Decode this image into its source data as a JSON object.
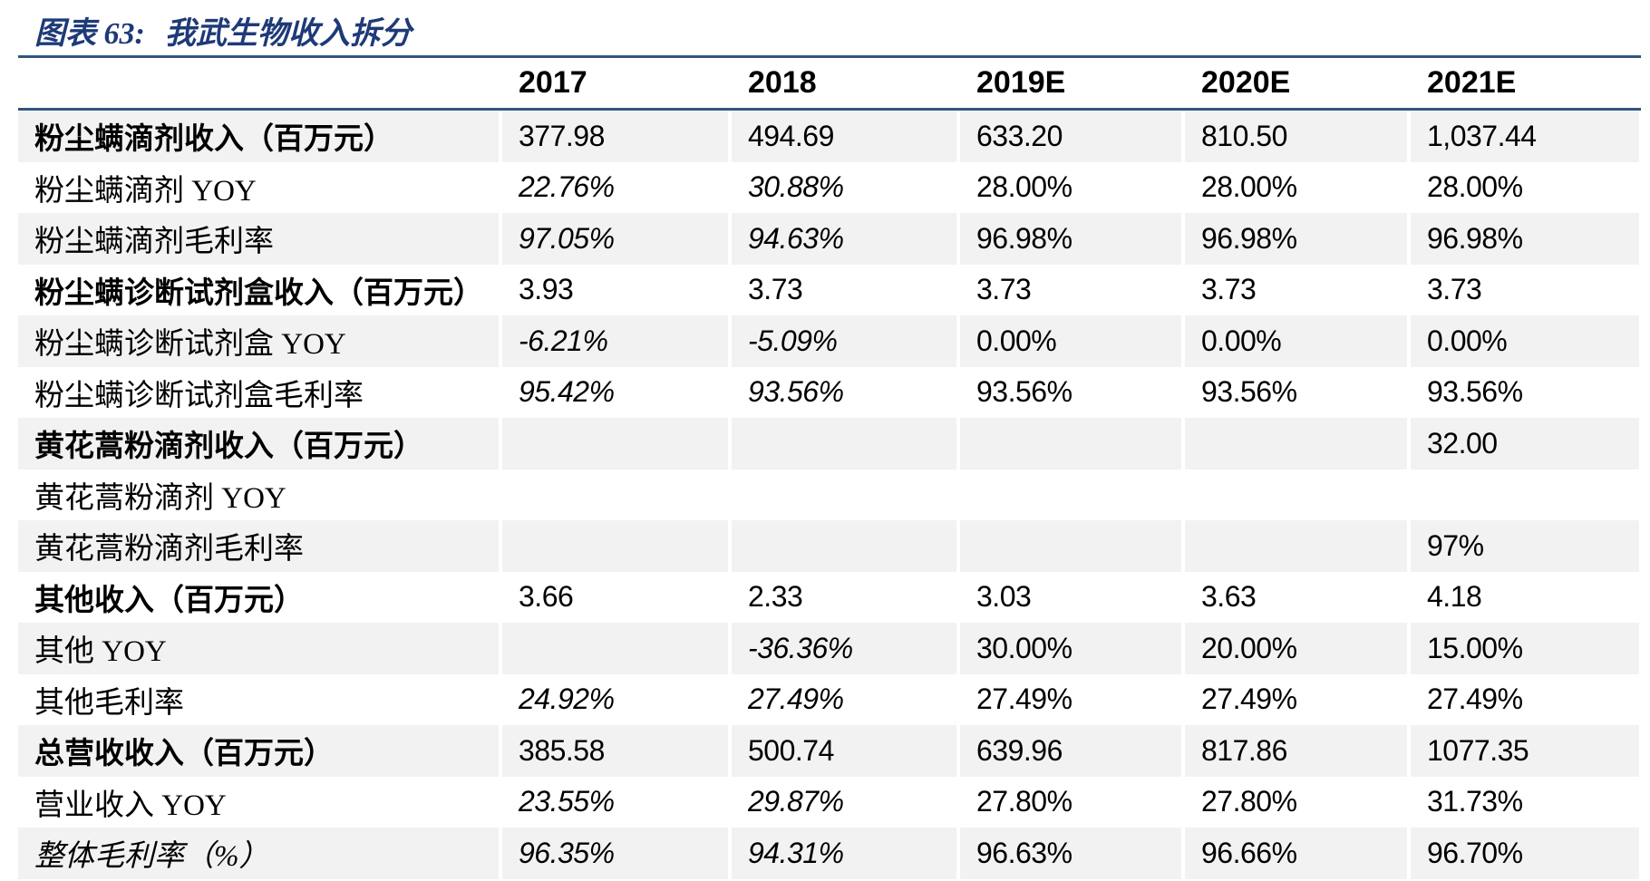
{
  "title": {
    "prefix": "图表 63:",
    "text": "我武生物收入拆分"
  },
  "colors": {
    "title_navy": "#1E3A78",
    "rule_blue": "#31567E",
    "row_stripe": "#F2F2F2",
    "text": "#000000"
  },
  "table": {
    "columns": [
      "",
      "2017",
      "2018",
      "2019E",
      "2020E",
      "2021E"
    ],
    "rows": [
      {
        "label": "粉尘螨滴剂收入（百万元）",
        "label_bold": true,
        "label_italic": false,
        "values": [
          "377.98",
          "494.69",
          "633.20",
          "810.50",
          "1,037.44"
        ],
        "italics": [
          false,
          false,
          false,
          false,
          false
        ]
      },
      {
        "label": "粉尘螨滴剂 YOY",
        "label_bold": false,
        "label_italic": false,
        "values": [
          "22.76%",
          "30.88%",
          "28.00%",
          "28.00%",
          "28.00%"
        ],
        "italics": [
          true,
          true,
          false,
          false,
          false
        ]
      },
      {
        "label": "粉尘螨滴剂毛利率",
        "label_bold": false,
        "label_italic": false,
        "values": [
          "97.05%",
          "94.63%",
          "96.98%",
          "96.98%",
          "96.98%"
        ],
        "italics": [
          true,
          true,
          false,
          false,
          false
        ]
      },
      {
        "label": "粉尘螨诊断试剂盒收入（百万元）",
        "label_bold": true,
        "label_italic": false,
        "values": [
          "3.93",
          "3.73",
          "3.73",
          "3.73",
          "3.73"
        ],
        "italics": [
          false,
          false,
          false,
          false,
          false
        ]
      },
      {
        "label": "粉尘螨诊断试剂盒 YOY",
        "label_bold": false,
        "label_italic": false,
        "values": [
          "-6.21%",
          "-5.09%",
          "0.00%",
          "0.00%",
          "0.00%"
        ],
        "italics": [
          true,
          true,
          false,
          false,
          false
        ]
      },
      {
        "label": "粉尘螨诊断试剂盒毛利率",
        "label_bold": false,
        "label_italic": false,
        "values": [
          "95.42%",
          "93.56%",
          "93.56%",
          "93.56%",
          "93.56%"
        ],
        "italics": [
          true,
          true,
          false,
          false,
          false
        ]
      },
      {
        "label": "黄花蒿粉滴剂收入（百万元）",
        "label_bold": true,
        "label_italic": false,
        "values": [
          "",
          "",
          "",
          "",
          "32.00"
        ],
        "italics": [
          false,
          false,
          false,
          false,
          false
        ]
      },
      {
        "label": "黄花蒿粉滴剂 YOY",
        "label_bold": false,
        "label_italic": false,
        "values": [
          "",
          "",
          "",
          "",
          ""
        ],
        "italics": [
          false,
          false,
          false,
          false,
          false
        ]
      },
      {
        "label": "黄花蒿粉滴剂毛利率",
        "label_bold": false,
        "label_italic": false,
        "values": [
          "",
          "",
          "",
          "",
          "97%"
        ],
        "italics": [
          false,
          false,
          false,
          false,
          false
        ]
      },
      {
        "label": "其他收入（百万元）",
        "label_bold": true,
        "label_italic": false,
        "values": [
          "3.66",
          "2.33",
          "3.03",
          "3.63",
          "4.18"
        ],
        "italics": [
          false,
          false,
          false,
          false,
          false
        ]
      },
      {
        "label": "其他 YOY",
        "label_bold": false,
        "label_italic": false,
        "values": [
          "",
          "-36.36%",
          "30.00%",
          "20.00%",
          "15.00%"
        ],
        "italics": [
          false,
          true,
          false,
          false,
          false
        ]
      },
      {
        "label": "其他毛利率",
        "label_bold": false,
        "label_italic": false,
        "values": [
          "24.92%",
          "27.49%",
          "27.49%",
          "27.49%",
          "27.49%"
        ],
        "italics": [
          true,
          true,
          false,
          false,
          false
        ]
      },
      {
        "label": "总营收收入（百万元）",
        "label_bold": true,
        "label_italic": false,
        "values": [
          "385.58",
          "500.74",
          "639.96",
          "817.86",
          "1077.35"
        ],
        "italics": [
          false,
          false,
          false,
          false,
          false
        ]
      },
      {
        "label": "营业收入 YOY",
        "label_bold": false,
        "label_italic": false,
        "values": [
          "23.55%",
          "29.87%",
          "27.80%",
          "27.80%",
          "31.73%"
        ],
        "italics": [
          true,
          true,
          false,
          false,
          false
        ]
      },
      {
        "label": "整体毛利率（%）",
        "label_bold": false,
        "label_italic": true,
        "values": [
          "96.35%",
          "94.31%",
          "96.63%",
          "96.66%",
          "96.70%"
        ],
        "italics": [
          true,
          true,
          false,
          false,
          false
        ]
      }
    ]
  }
}
